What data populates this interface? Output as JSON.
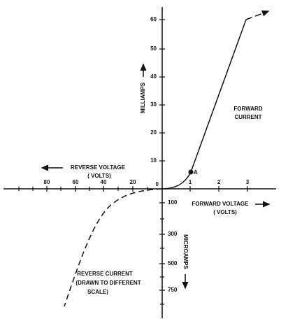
{
  "axes": {
    "origin": "0",
    "y_upper_ticks": [
      "10",
      "20",
      "30",
      "40",
      "50",
      "60"
    ],
    "x_right_ticks": [
      "1",
      "2",
      "3"
    ],
    "x_left_ticks": [
      "20",
      "40",
      "60",
      "80"
    ],
    "y_lower_ticks": [
      "100",
      "300",
      "500",
      "750"
    ]
  },
  "labels": {
    "y_upper": "MILLIAMPS",
    "y_lower": "MICROAMPS",
    "x_left": [
      "REVERSE VOLTAGE",
      "( VOLTS)"
    ],
    "x_right": [
      "FORWARD VOLTAGE",
      "( VOLTS)"
    ],
    "forward": [
      "FORWARD",
      "CURRENT"
    ],
    "reverse": [
      "REVERSE CURRENT",
      "(DRAWN TO DIFFERENT",
      "SCALE)"
    ],
    "point": "A"
  }
}
